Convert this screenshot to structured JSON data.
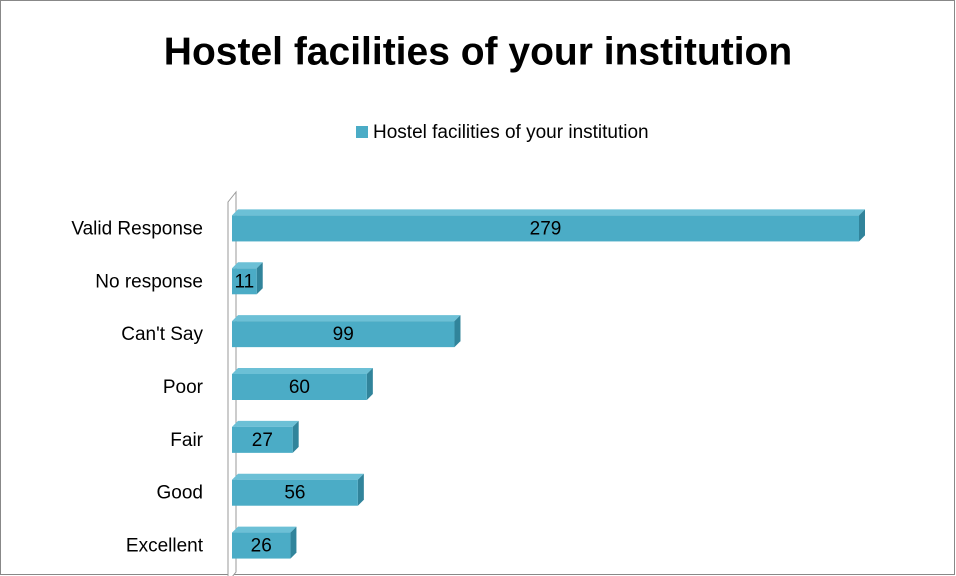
{
  "chart_data": {
    "type": "bar",
    "orientation": "horizontal",
    "title": "Hostel  facilities of your institution",
    "categories": [
      "Valid Response",
      "No response",
      "Can't Say",
      "Poor",
      "Fair",
      "Good",
      "Excellent"
    ],
    "series": [
      {
        "name": "Hostel  facilities of your institution",
        "color": "#4bacc6",
        "values": [
          279,
          11,
          99,
          60,
          27,
          56,
          26
        ]
      }
    ],
    "legend": "top"
  }
}
